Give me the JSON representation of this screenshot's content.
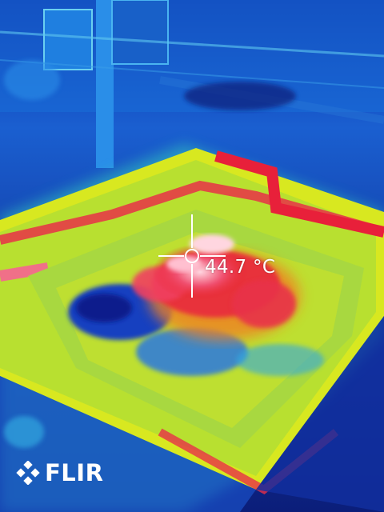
{
  "camera": {
    "brand": "FLIR",
    "spot_temperature": "44.7 °C"
  },
  "palette": {
    "cold": "#0a1a8c",
    "cool": "#1aa0e0",
    "mid": "#f0e81a",
    "warm": "#e8202a",
    "hot": "#ffd6e0"
  }
}
